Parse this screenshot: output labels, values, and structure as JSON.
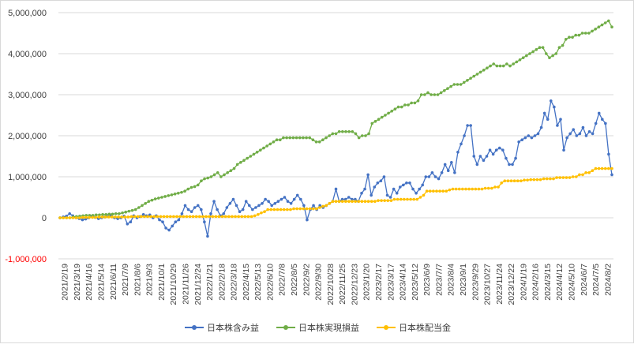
{
  "chart_data": {
    "type": "line",
    "title": "",
    "xlabel": "",
    "ylabel": "",
    "ylim": [
      -1000000,
      5000000
    ],
    "y_ticks": [
      5000000,
      4000000,
      3000000,
      2000000,
      1000000,
      0,
      -1000000
    ],
    "y_tick_labels": [
      "5,000,000",
      "4,000,000",
      "3,000,000",
      "2,000,000",
      "1,000,000",
      "0",
      "-1,000,000"
    ],
    "negative_label_color": "#ff0000",
    "grid": true,
    "legend_position": "bottom",
    "x_tick_labels": [
      "2021/2/19",
      "2021/3/19",
      "2021/4/16",
      "2021/5/14",
      "2021/6/11",
      "2021/7/9",
      "2021/8/6",
      "2021/9/3",
      "2021/10/1",
      "2021/10/29",
      "2021/11/26",
      "2021/12/24",
      "2022/1/21",
      "2022/2/18",
      "2022/3/18",
      "2022/4/15",
      "2022/5/13",
      "2022/6/10",
      "2022/7/8",
      "2022/8/5",
      "2022/9/2",
      "2022/9/30",
      "2022/10/28",
      "2022/11/25",
      "2022/12/23",
      "2023/1/20",
      "2023/2/17",
      "2023/3/17",
      "2023/4/14",
      "2023/5/12",
      "2023/6/9",
      "2023/7/7",
      "2023/8/4",
      "2023/9/1",
      "2023/9/29",
      "2023/10/27",
      "2023/11/24",
      "2023/12/22",
      "2024/1/19",
      "2024/2/16",
      "2024/3/15",
      "2024/4/12",
      "2024/5/10",
      "2024/6/7",
      "2024/7/5",
      "2024/8/2"
    ],
    "series": [
      {
        "name": "日本株含み益",
        "color": "#4472c4",
        "values": [
          0,
          20000,
          40000,
          100000,
          50000,
          0,
          -20000,
          -50000,
          -30000,
          0,
          30000,
          10000,
          -20000,
          0,
          20000,
          30000,
          50000,
          0,
          -20000,
          0,
          40000,
          -150000,
          -100000,
          50000,
          0,
          30000,
          80000,
          50000,
          70000,
          0,
          50000,
          -50000,
          -100000,
          -250000,
          -300000,
          -200000,
          -100000,
          -50000,
          100000,
          300000,
          200000,
          150000,
          250000,
          300000,
          200000,
          -100000,
          -450000,
          100000,
          400000,
          200000,
          50000,
          100000,
          250000,
          350000,
          450000,
          300000,
          150000,
          200000,
          400000,
          300000,
          200000,
          250000,
          300000,
          350000,
          450000,
          400000,
          300000,
          350000,
          400000,
          450000,
          500000,
          400000,
          350000,
          450000,
          550000,
          450000,
          300000,
          -50000,
          200000,
          300000,
          200000,
          300000,
          250000,
          300000,
          350000,
          400000,
          700000,
          400000,
          450000,
          450000,
          500000,
          450000,
          450000,
          400000,
          600000,
          700000,
          1050000,
          550000,
          750000,
          850000,
          900000,
          1000000,
          550000,
          500000,
          700000,
          600000,
          750000,
          800000,
          850000,
          850000,
          700000,
          600000,
          700000,
          800000,
          1000000,
          1000000,
          1100000,
          1000000,
          950000,
          1100000,
          1300000,
          1150000,
          1350000,
          1100000,
          1600000,
          1800000,
          2000000,
          2250000,
          2250000,
          1500000,
          1300000,
          1500000,
          1400000,
          1500000,
          1650000,
          1550000,
          1650000,
          1700000,
          1650000,
          1450000,
          1300000,
          1300000,
          1450000,
          1850000,
          1900000,
          1950000,
          2000000,
          1950000,
          2000000,
          2050000,
          2200000,
          2550000,
          2400000,
          2850000,
          2700000,
          2250000,
          2400000,
          1650000,
          1950000,
          2050000,
          2150000,
          2000000,
          2050000,
          2200000,
          2000000,
          2100000,
          2050000,
          2300000,
          2550000,
          2400000,
          2300000,
          1550000,
          1050000
        ]
      },
      {
        "name": "日本株実現損益",
        "color": "#70ad47",
        "values": [
          0,
          0,
          0,
          0,
          20000,
          30000,
          40000,
          50000,
          60000,
          60000,
          60000,
          70000,
          70000,
          80000,
          80000,
          90000,
          90000,
          100000,
          100000,
          120000,
          140000,
          160000,
          180000,
          200000,
          250000,
          300000,
          350000,
          400000,
          430000,
          460000,
          480000,
          500000,
          520000,
          540000,
          560000,
          580000,
          600000,
          620000,
          650000,
          700000,
          740000,
          760000,
          800000,
          900000,
          950000,
          970000,
          1000000,
          1050000,
          1100000,
          1000000,
          1050000,
          1100000,
          1150000,
          1200000,
          1300000,
          1350000,
          1400000,
          1450000,
          1500000,
          1550000,
          1600000,
          1650000,
          1700000,
          1750000,
          1800000,
          1850000,
          1900000,
          1900000,
          1950000,
          1950000,
          1950000,
          1950000,
          1950000,
          1950000,
          1950000,
          1950000,
          1950000,
          1900000,
          1850000,
          1850000,
          1900000,
          1950000,
          2000000,
          2050000,
          2050000,
          2100000,
          2100000,
          2100000,
          2100000,
          2100000,
          2050000,
          1950000,
          2000000,
          2000000,
          2050000,
          2300000,
          2350000,
          2400000,
          2450000,
          2500000,
          2550000,
          2600000,
          2650000,
          2700000,
          2700000,
          2750000,
          2750000,
          2800000,
          2800000,
          2850000,
          3000000,
          3000000,
          3050000,
          3000000,
          3000000,
          3000000,
          3050000,
          3100000,
          3150000,
          3200000,
          3250000,
          3250000,
          3250000,
          3300000,
          3350000,
          3400000,
          3450000,
          3500000,
          3550000,
          3600000,
          3650000,
          3700000,
          3750000,
          3700000,
          3700000,
          3700000,
          3750000,
          3700000,
          3750000,
          3800000,
          3850000,
          3900000,
          3950000,
          4000000,
          4050000,
          4100000,
          4150000,
          4150000,
          4000000,
          3900000,
          3950000,
          4000000,
          4150000,
          4200000,
          4350000,
          4400000,
          4400000,
          4450000,
          4450000,
          4500000,
          4500000,
          4500000,
          4550000,
          4600000,
          4650000,
          4700000,
          4750000,
          4800000,
          4650000
        ]
      },
      {
        "name": "日本株配当金",
        "color": "#ffc000",
        "values": [
          0,
          0,
          0,
          0,
          0,
          0,
          0,
          10000,
          10000,
          10000,
          10000,
          10000,
          20000,
          20000,
          20000,
          20000,
          20000,
          20000,
          20000,
          20000,
          20000,
          20000,
          30000,
          30000,
          30000,
          30000,
          30000,
          30000,
          30000,
          30000,
          30000,
          30000,
          30000,
          30000,
          30000,
          30000,
          30000,
          30000,
          30000,
          30000,
          30000,
          30000,
          30000,
          30000,
          30000,
          30000,
          30000,
          30000,
          30000,
          30000,
          30000,
          30000,
          30000,
          30000,
          30000,
          30000,
          30000,
          30000,
          30000,
          30000,
          50000,
          80000,
          120000,
          150000,
          200000,
          200000,
          200000,
          200000,
          200000,
          200000,
          200000,
          200000,
          220000,
          220000,
          220000,
          220000,
          220000,
          220000,
          220000,
          220000,
          250000,
          280000,
          300000,
          350000,
          400000,
          400000,
          400000,
          400000,
          400000,
          400000,
          400000,
          400000,
          400000,
          400000,
          400000,
          400000,
          400000,
          400000,
          420000,
          420000,
          420000,
          420000,
          420000,
          450000,
          450000,
          450000,
          450000,
          450000,
          450000,
          450000,
          450000,
          500000,
          550000,
          650000,
          650000,
          650000,
          650000,
          650000,
          650000,
          650000,
          680000,
          700000,
          700000,
          700000,
          700000,
          700000,
          700000,
          700000,
          700000,
          700000,
          700000,
          720000,
          720000,
          720000,
          750000,
          750000,
          850000,
          900000,
          900000,
          900000,
          900000,
          900000,
          900000,
          920000,
          920000,
          930000,
          930000,
          930000,
          930000,
          950000,
          950000,
          950000,
          950000,
          980000,
          980000,
          980000,
          980000,
          980000,
          1000000,
          1000000,
          1050000,
          1050000,
          1100000,
          1100000,
          1150000,
          1200000,
          1200000,
          1200000,
          1200000,
          1200000,
          1200000
        ]
      }
    ]
  }
}
